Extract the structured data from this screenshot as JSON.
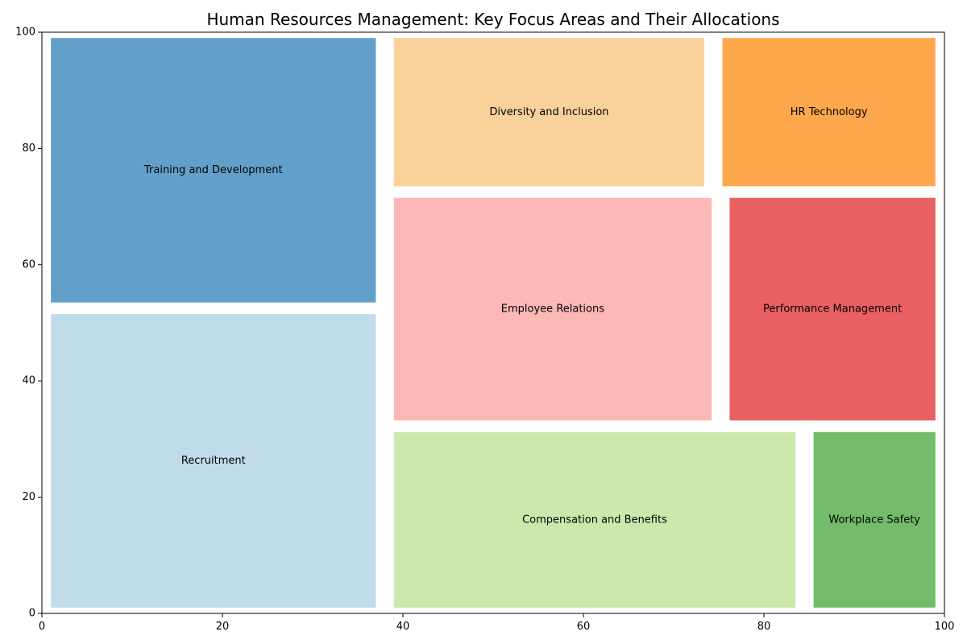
{
  "chart_data": {
    "type": "treemap",
    "title": "Human Resources Management: Key Focus Areas and Their Allocations",
    "xlabel": "",
    "ylabel": "",
    "xlim": [
      0,
      100
    ],
    "ylim": [
      0,
      100
    ],
    "xticks": [
      "0",
      "20",
      "40",
      "60",
      "80",
      "100"
    ],
    "yticks": [
      "0",
      "20",
      "40",
      "60",
      "80",
      "100"
    ],
    "grid": false,
    "rectangles": [
      {
        "label": "Recruitment",
        "x0": 1,
        "x1": 37,
        "y0": 1,
        "y1": 51.5,
        "color": "#c0dcea"
      },
      {
        "label": "Training and Development",
        "x0": 1,
        "x1": 37,
        "y0": 53.5,
        "y1": 99,
        "color": "#62a0ca"
      },
      {
        "label": "Compensation and Benefits",
        "x0": 39,
        "x1": 83.5,
        "y0": 1,
        "y1": 31.2,
        "color": "#cbe8ad"
      },
      {
        "label": "Workplace Safety",
        "x0": 85.5,
        "x1": 99,
        "y0": 1,
        "y1": 31.2,
        "color": "#72bc6a"
      },
      {
        "label": "Employee Relations",
        "x0": 39,
        "x1": 74.2,
        "y0": 33.2,
        "y1": 71.5,
        "color": "#fbb8b7"
      },
      {
        "label": "Performance Management",
        "x0": 76.2,
        "x1": 99,
        "y0": 33.2,
        "y1": 71.5,
        "color": "#e96062"
      },
      {
        "label": "Diversity and Inclusion",
        "x0": 39,
        "x1": 73.4,
        "y0": 73.5,
        "y1": 99,
        "color": "#fbd19b"
      },
      {
        "label": "HR Technology",
        "x0": 75.4,
        "x1": 99,
        "y0": 73.5,
        "y1": 99,
        "color": "#ffa74d"
      }
    ]
  }
}
